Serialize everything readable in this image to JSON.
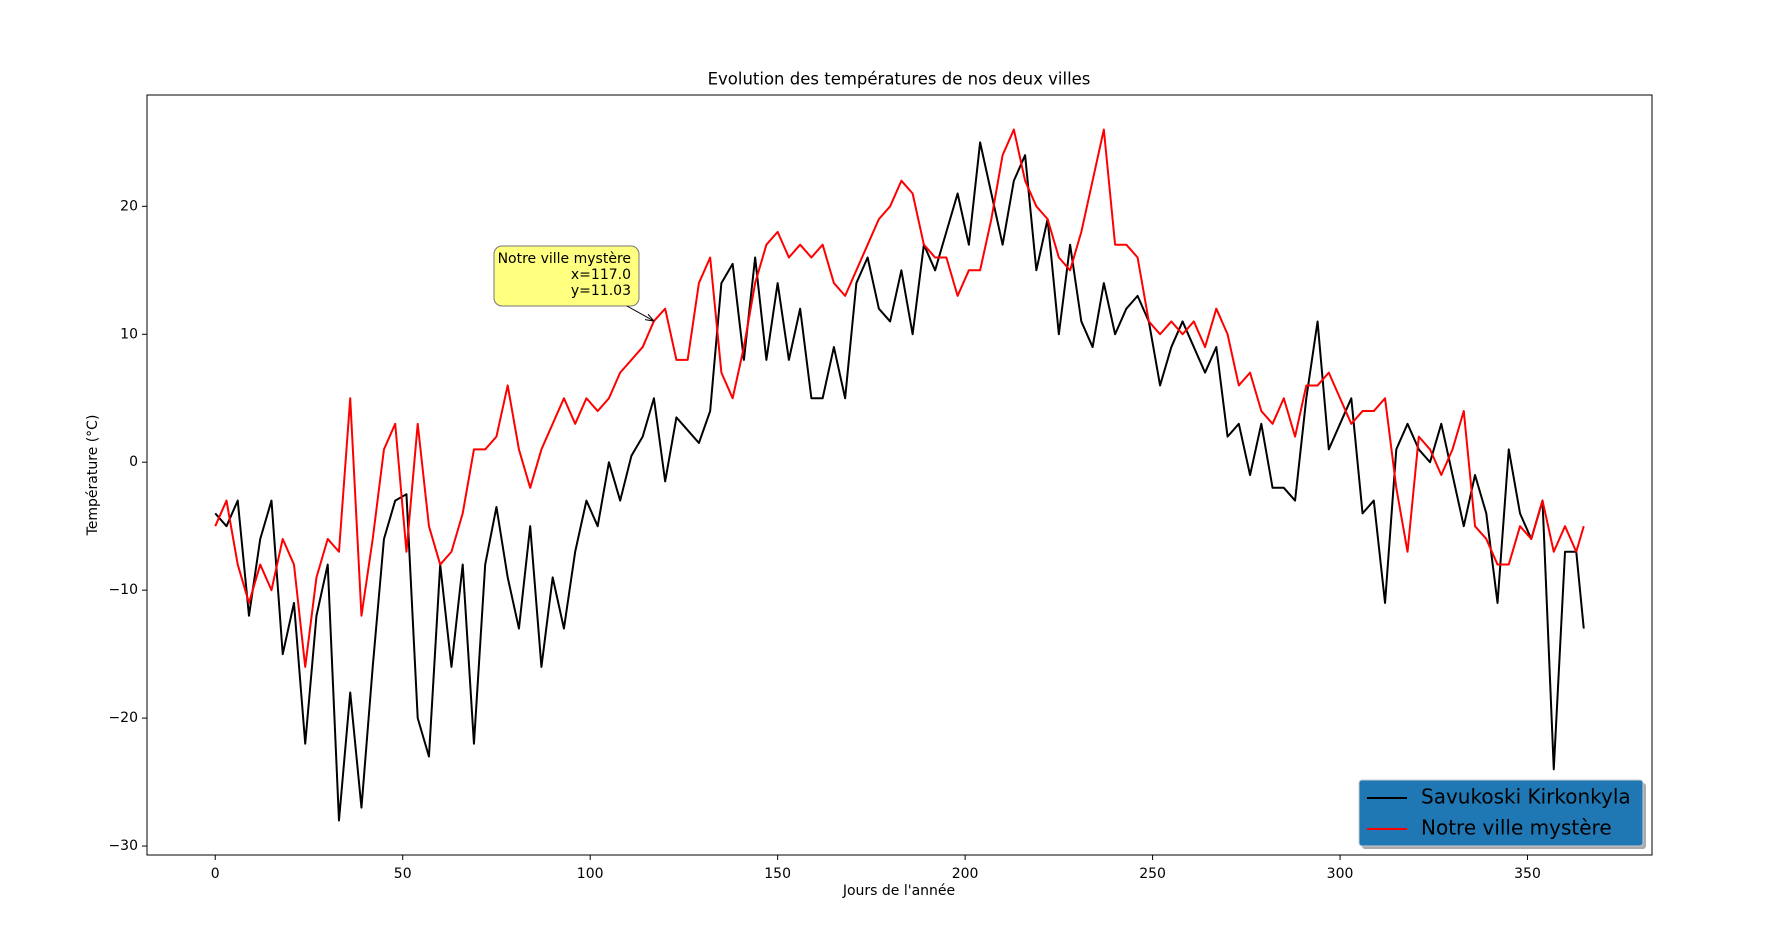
{
  "chart_data": {
    "type": "line",
    "title": "Evolution des températures de nos deux villes",
    "xlabel": "Jours de l'année",
    "ylabel": "Température (°C)",
    "x": [
      0,
      3,
      6,
      9,
      12,
      15,
      18,
      21,
      24,
      27,
      30,
      33,
      36,
      39,
      42,
      45,
      48,
      51,
      54,
      57,
      60,
      63,
      66,
      69,
      72,
      75,
      78,
      81,
      84,
      87,
      90,
      93,
      96,
      99,
      102,
      105,
      108,
      111,
      114,
      117,
      120,
      123,
      126,
      129,
      132,
      135,
      138,
      141,
      144,
      147,
      150,
      153,
      156,
      159,
      162,
      165,
      168,
      171,
      174,
      177,
      180,
      183,
      186,
      189,
      192,
      195,
      198,
      201,
      204,
      207,
      210,
      213,
      216,
      219,
      222,
      225,
      228,
      231,
      234,
      237,
      240,
      243,
      246,
      249,
      252,
      255,
      258,
      261,
      264,
      267,
      270,
      273,
      276,
      279,
      282,
      285,
      288,
      291,
      294,
      297,
      300,
      303,
      306,
      309,
      312,
      315,
      318,
      321,
      324,
      327,
      330,
      333,
      336,
      339,
      342,
      345,
      348,
      351,
      354,
      357,
      360,
      363,
      365
    ],
    "series": [
      {
        "name": "Savukoski Kirkonkyla",
        "color": "#000000",
        "values": [
          -4,
          -5,
          -3,
          -12,
          -6,
          -3,
          -15,
          -11,
          -22,
          -12,
          -8,
          -28,
          -18,
          -27,
          -16,
          -6,
          -3,
          -2.5,
          -20,
          -23,
          -8,
          -16,
          -8,
          -22,
          -8,
          -3.5,
          -9,
          -13,
          -5,
          -16,
          -9,
          -13,
          -7,
          -3,
          -5,
          0,
          -3,
          0.5,
          2,
          5,
          -1.5,
          3.5,
          2.5,
          1.5,
          4,
          14,
          15.5,
          8,
          16,
          8,
          14,
          8,
          12,
          5,
          5,
          9,
          5,
          14,
          16,
          12,
          11,
          15,
          10,
          17,
          15,
          18,
          21,
          17,
          25,
          21,
          17,
          22,
          24,
          15,
          19,
          10,
          17,
          11,
          9,
          14,
          10,
          12,
          13,
          11,
          6,
          9,
          11,
          9,
          7,
          9,
          2,
          3,
          -1,
          3,
          -2,
          -2,
          -3,
          5,
          11,
          1,
          3,
          5,
          -4,
          -3,
          -11,
          1,
          3,
          1,
          0,
          3,
          -1,
          -5,
          -1,
          -4,
          -11,
          1,
          -4,
          -6,
          -3,
          -24,
          -7,
          -7,
          -13
        ]
      },
      {
        "name": "Notre ville mystère",
        "color": "#ff0000",
        "values": [
          -5,
          -3,
          -8,
          -11,
          -8,
          -10,
          -6,
          -8,
          -16,
          -9,
          -6,
          -7,
          5,
          -12,
          -6,
          1,
          3,
          -7,
          3,
          -5,
          -8,
          -7,
          -4,
          1,
          1,
          2,
          6,
          1,
          -2,
          1,
          3,
          5,
          3,
          5,
          4,
          5,
          7,
          8,
          9,
          11.03,
          12,
          8,
          8,
          14,
          16,
          7,
          5,
          9,
          14,
          17,
          18,
          16,
          17,
          16,
          17,
          14,
          13,
          15,
          17,
          19,
          20,
          22,
          21,
          17,
          16,
          16,
          13,
          15,
          15,
          19,
          24,
          26,
          22,
          20,
          19,
          16,
          15,
          18,
          22,
          26,
          17,
          17,
          16,
          11,
          10,
          11,
          10,
          11,
          9,
          12,
          10,
          6,
          7,
          4,
          3,
          5,
          2,
          6,
          6,
          7,
          5,
          3,
          4,
          4,
          5,
          -2,
          -7,
          2,
          1,
          -1,
          1,
          4,
          -5,
          -6,
          -8,
          -8,
          -5,
          -6,
          -3,
          -7,
          -5,
          -7,
          -5
        ]
      }
    ],
    "xlim": [
      -18.2,
      383.2
    ],
    "ylim": [
      -30.7,
      28.7
    ],
    "xticks": [
      0,
      50,
      100,
      150,
      200,
      250,
      300,
      350
    ],
    "yticks": [
      {
        "value": -30,
        "label": "−30"
      },
      {
        "value": -20,
        "label": "−20"
      },
      {
        "value": -10,
        "label": "−10"
      },
      0,
      10,
      20
    ],
    "legend": "lower right",
    "legend_color": "#1f77b4",
    "annotation": {
      "text": [
        "Notre ville mystère",
        "x=117.0",
        "y=11.03"
      ],
      "xy": [
        117,
        11.03
      ],
      "color": "#ffff80"
    }
  }
}
